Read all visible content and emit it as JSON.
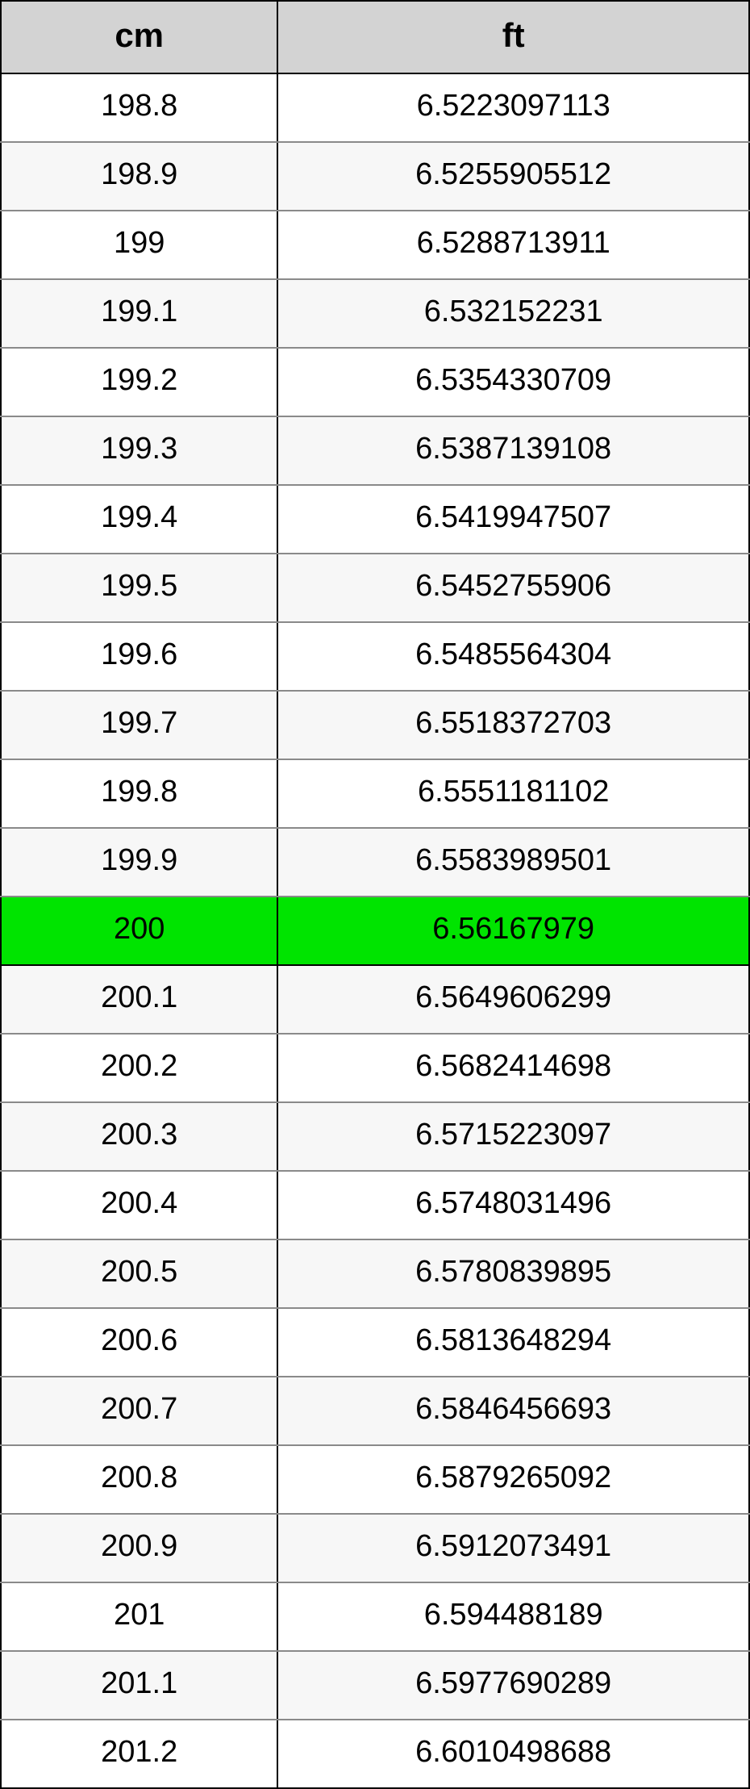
{
  "table": {
    "type": "table",
    "columns": [
      "cm",
      "ft"
    ],
    "column_widths_pct": [
      37,
      63
    ],
    "header_bg": "#d3d3d3",
    "header_font_size_pt": 32,
    "header_font_weight": "bold",
    "cell_font_size_pt": 28,
    "border_color_outer": "#000000",
    "border_color_inner": "#8a8a8a",
    "row_bg_even": "#ffffff",
    "row_bg_odd": "#f7f7f7",
    "highlight_bg": "#00e400",
    "highlighted_row_index": 12,
    "rows": [
      {
        "cm": "198.8",
        "ft": "6.5223097113"
      },
      {
        "cm": "198.9",
        "ft": "6.5255905512"
      },
      {
        "cm": "199",
        "ft": "6.5288713911"
      },
      {
        "cm": "199.1",
        "ft": "6.532152231"
      },
      {
        "cm": "199.2",
        "ft": "6.5354330709"
      },
      {
        "cm": "199.3",
        "ft": "6.5387139108"
      },
      {
        "cm": "199.4",
        "ft": "6.5419947507"
      },
      {
        "cm": "199.5",
        "ft": "6.5452755906"
      },
      {
        "cm": "199.6",
        "ft": "6.5485564304"
      },
      {
        "cm": "199.7",
        "ft": "6.5518372703"
      },
      {
        "cm": "199.8",
        "ft": "6.5551181102"
      },
      {
        "cm": "199.9",
        "ft": "6.5583989501"
      },
      {
        "cm": "200",
        "ft": "6.56167979"
      },
      {
        "cm": "200.1",
        "ft": "6.5649606299"
      },
      {
        "cm": "200.2",
        "ft": "6.5682414698"
      },
      {
        "cm": "200.3",
        "ft": "6.5715223097"
      },
      {
        "cm": "200.4",
        "ft": "6.5748031496"
      },
      {
        "cm": "200.5",
        "ft": "6.5780839895"
      },
      {
        "cm": "200.6",
        "ft": "6.5813648294"
      },
      {
        "cm": "200.7",
        "ft": "6.5846456693"
      },
      {
        "cm": "200.8",
        "ft": "6.5879265092"
      },
      {
        "cm": "200.9",
        "ft": "6.5912073491"
      },
      {
        "cm": "201",
        "ft": "6.594488189"
      },
      {
        "cm": "201.1",
        "ft": "6.5977690289"
      },
      {
        "cm": "201.2",
        "ft": "6.6010498688"
      }
    ]
  }
}
